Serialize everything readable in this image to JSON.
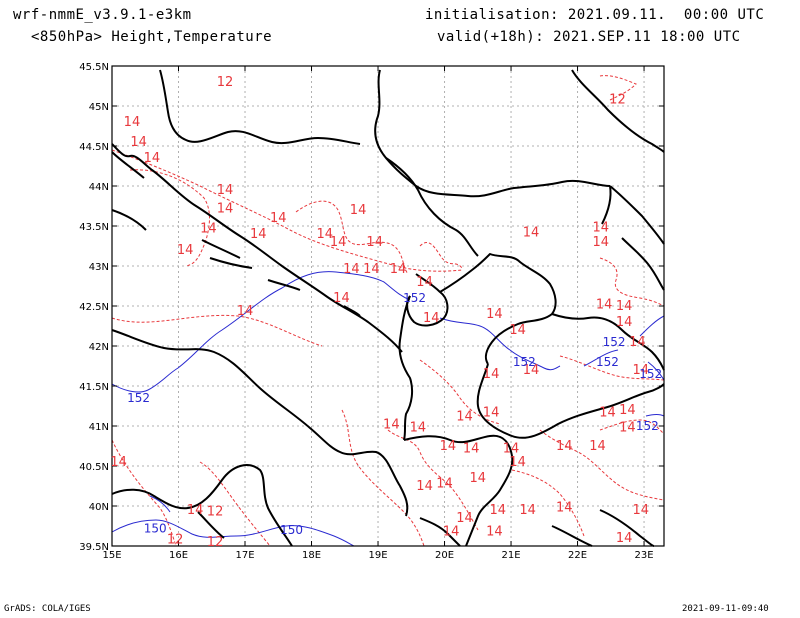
{
  "header": {
    "model": "wrf-nmmE_v3.9.1-e3km",
    "level": "<850hPa> Height,Temperature",
    "initialisation": "initialisation: 2021.09.11.  00:00 UTC",
    "valid": "valid(+18h): 2021.SEP.11 18:00 UTC"
  },
  "footer": {
    "credit": "GrADS: COLA/IGES",
    "timestamp": "2021-09-11-09:40"
  },
  "map": {
    "lon_labels": [
      "15E",
      "16E",
      "17E",
      "18E",
      "19E",
      "20E",
      "21E",
      "22E",
      "23E"
    ],
    "lat_labels": [
      "45.5N",
      "45N",
      "44.5N",
      "44N",
      "43.5N",
      "43N",
      "42.5N",
      "42N",
      "41.5N",
      "41N",
      "40.5N",
      "40N",
      "39.5N"
    ],
    "temperature_contours": {
      "color": "#e8383c",
      "labels": [
        {
          "lon": 16.7,
          "lat": 45.3,
          "text": "12"
        },
        {
          "lon": 22.6,
          "lat": 45.08,
          "text": "12"
        },
        {
          "lon": 15.3,
          "lat": 44.8,
          "text": "14"
        },
        {
          "lon": 15.6,
          "lat": 44.35,
          "text": "14"
        },
        {
          "lon": 16.7,
          "lat": 43.95,
          "text": "14"
        },
        {
          "lon": 16.7,
          "lat": 43.72,
          "text": "14"
        },
        {
          "lon": 16.45,
          "lat": 43.47,
          "text": "14"
        },
        {
          "lon": 16.1,
          "lat": 43.2,
          "text": "14"
        },
        {
          "lon": 17.2,
          "lat": 43.4,
          "text": "14"
        },
        {
          "lon": 17.5,
          "lat": 43.6,
          "text": "14"
        },
        {
          "lon": 18.2,
          "lat": 43.4,
          "text": "14"
        },
        {
          "lon": 18.4,
          "lat": 43.3,
          "text": "14"
        },
        {
          "lon": 18.7,
          "lat": 43.7,
          "text": "14"
        },
        {
          "lon": 18.95,
          "lat": 43.3,
          "text": "14"
        },
        {
          "lon": 18.6,
          "lat": 42.96,
          "text": "14"
        },
        {
          "lon": 18.9,
          "lat": 42.96,
          "text": "14"
        },
        {
          "lon": 19.3,
          "lat": 42.96,
          "text": "14"
        },
        {
          "lon": 19.7,
          "lat": 42.8,
          "text": "14"
        },
        {
          "lon": 18.45,
          "lat": 42.6,
          "text": "14"
        },
        {
          "lon": 15.4,
          "lat": 44.55,
          "text": "14"
        },
        {
          "lon": 21.3,
          "lat": 43.42,
          "text": "14"
        },
        {
          "lon": 22.35,
          "lat": 43.48,
          "text": "14"
        },
        {
          "lon": 22.35,
          "lat": 43.3,
          "text": "14"
        },
        {
          "lon": 17.0,
          "lat": 42.44,
          "text": "14"
        },
        {
          "lon": 20.75,
          "lat": 42.4,
          "text": "14"
        },
        {
          "lon": 19.8,
          "lat": 42.35,
          "text": "14"
        },
        {
          "lon": 21.1,
          "lat": 42.2,
          "text": "14"
        },
        {
          "lon": 22.4,
          "lat": 42.52,
          "text": "14"
        },
        {
          "lon": 22.7,
          "lat": 42.5,
          "text": "14"
        },
        {
          "lon": 22.7,
          "lat": 42.3,
          "text": "14"
        },
        {
          "lon": 22.9,
          "lat": 42.05,
          "text": "14"
        },
        {
          "lon": 21.3,
          "lat": 41.7,
          "text": "14"
        },
        {
          "lon": 22.95,
          "lat": 41.7,
          "text": "14"
        },
        {
          "lon": 20.7,
          "lat": 41.65,
          "text": "14"
        },
        {
          "lon": 20.3,
          "lat": 41.12,
          "text": "14"
        },
        {
          "lon": 20.7,
          "lat": 41.17,
          "text": "14"
        },
        {
          "lon": 19.6,
          "lat": 40.98,
          "text": "14"
        },
        {
          "lon": 19.2,
          "lat": 41.02,
          "text": "14"
        },
        {
          "lon": 20.05,
          "lat": 40.75,
          "text": "14"
        },
        {
          "lon": 20.4,
          "lat": 40.72,
          "text": "14"
        },
        {
          "lon": 21.0,
          "lat": 40.72,
          "text": "14"
        },
        {
          "lon": 22.45,
          "lat": 41.17,
          "text": "14"
        },
        {
          "lon": 22.75,
          "lat": 41.2,
          "text": "14"
        },
        {
          "lon": 22.75,
          "lat": 40.98,
          "text": "14"
        },
        {
          "lon": 21.8,
          "lat": 40.75,
          "text": "14"
        },
        {
          "lon": 22.3,
          "lat": 40.75,
          "text": "14"
        },
        {
          "lon": 21.1,
          "lat": 40.55,
          "text": "14"
        },
        {
          "lon": 20.5,
          "lat": 40.35,
          "text": "14"
        },
        {
          "lon": 19.7,
          "lat": 40.25,
          "text": "14"
        },
        {
          "lon": 20.0,
          "lat": 40.28,
          "text": "14"
        },
        {
          "lon": 16.25,
          "lat": 39.95,
          "text": "14"
        },
        {
          "lon": 16.55,
          "lat": 39.93,
          "text": "12"
        },
        {
          "lon": 20.8,
          "lat": 39.95,
          "text": "14"
        },
        {
          "lon": 21.25,
          "lat": 39.95,
          "text": "14"
        },
        {
          "lon": 21.8,
          "lat": 39.98,
          "text": "14"
        },
        {
          "lon": 20.75,
          "lat": 39.68,
          "text": "14"
        },
        {
          "lon": 20.1,
          "lat": 39.68,
          "text": "14"
        },
        {
          "lon": 20.3,
          "lat": 39.85,
          "text": "14"
        },
        {
          "lon": 22.95,
          "lat": 39.95,
          "text": "14"
        },
        {
          "lon": 22.7,
          "lat": 39.6,
          "text": "14"
        },
        {
          "lon": 15.1,
          "lat": 40.55,
          "text": "14"
        },
        {
          "lon": 15.95,
          "lat": 39.58,
          "text": "12"
        },
        {
          "lon": 16.55,
          "lat": 39.55,
          "text": "12"
        }
      ]
    },
    "height_contours": {
      "color": "#2a2ad0",
      "labels": [
        {
          "lon": 15.4,
          "lat": 41.35,
          "text": "152"
        },
        {
          "lon": 19.55,
          "lat": 42.6,
          "text": "152"
        },
        {
          "lon": 21.2,
          "lat": 41.8,
          "text": "152"
        },
        {
          "lon": 22.45,
          "lat": 41.8,
          "text": "152"
        },
        {
          "lon": 22.55,
          "lat": 42.05,
          "text": "152"
        },
        {
          "lon": 23.1,
          "lat": 41.65,
          "text": "152"
        },
        {
          "lon": 23.05,
          "lat": 41.0,
          "text": "152"
        },
        {
          "lon": 15.65,
          "lat": 39.72,
          "text": "150"
        },
        {
          "lon": 17.7,
          "lat": 39.7,
          "text": "150"
        }
      ]
    }
  }
}
